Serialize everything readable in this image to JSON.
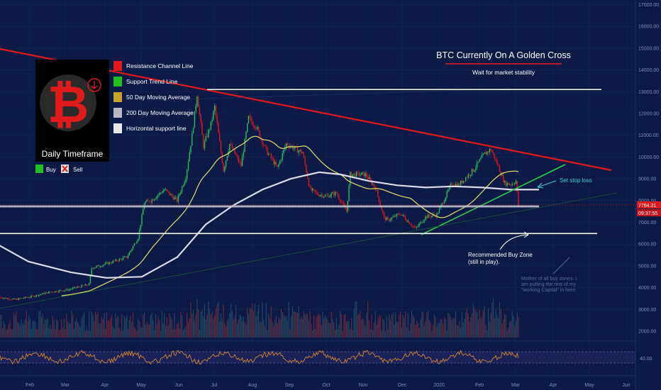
{
  "chart_data": {
    "type": "candlestick",
    "title": "BTC Currently On A Golden Cross",
    "subtitle": "Wait for market stability",
    "timeframe_label": "Daily Timeframe",
    "y_ticks": [
      "17000.00",
      "16000.00",
      "15000.00",
      "14000.00",
      "13000.00",
      "12000.00",
      "11000.00",
      "10000.00",
      "9000.00",
      "8000.00",
      "7000.00",
      "6000.00",
      "5000.00",
      "4000.00",
      "3000.00",
      "2000.00"
    ],
    "x_ticks": [
      "Feb",
      "Mar",
      "Apr",
      "May",
      "Jun",
      "Jul",
      "Aug",
      "Sep",
      "Oct",
      "Nov",
      "Dec",
      "2020",
      "Feb",
      "Mar",
      "Apr",
      "May",
      "Jun"
    ],
    "oscillator_tick": "40.00",
    "price_tag": "7764.31",
    "time_tag": "09:37:55",
    "ylim": [
      1500,
      17300
    ],
    "legend": [
      {
        "label": "Resistance Channel Line",
        "color": "#e01b1b"
      },
      {
        "label": "Support Trend Line",
        "color": "#1fbf1f"
      },
      {
        "label": "50 Day Moving Average",
        "color": "#c8a22a"
      },
      {
        "label": "200 Day Moving Average",
        "color": "#b9b9c4"
      },
      {
        "label": "Horizontal support line",
        "color": "#e8e8e8"
      }
    ],
    "buy_label": "Buy",
    "sell_label": "Sell",
    "annotations": {
      "stop_loss": "Set stop loss",
      "buy_zone_1": "Recommended Buy Zone",
      "buy_zone_2": "(still in play).",
      "note_1": "Mother of all buy zones. I",
      "note_2": "am putting the rest of my",
      "note_3": "\"working Capital\" in here."
    },
    "levels": [
      13100,
      7764,
      6550
    ],
    "price_series": [
      [
        "Jan 20",
        3550
      ],
      [
        "Feb 1",
        3450
      ],
      [
        "Feb 15",
        3600
      ],
      [
        "Mar 1",
        3800
      ],
      [
        "Mar 15",
        3900
      ],
      [
        "Apr 1",
        4150
      ],
      [
        "Apr 3",
        4900
      ],
      [
        "Apr 15",
        5100
      ],
      [
        "May 1",
        5400
      ],
      [
        "May 10",
        6300
      ],
      [
        "May 15",
        7900
      ],
      [
        "May 20",
        8000
      ],
      [
        "May 31",
        8500
      ],
      [
        "Jun 10",
        8000
      ],
      [
        "Jun 17",
        9100
      ],
      [
        "Jun 22",
        11000
      ],
      [
        "Jun 26",
        12900
      ],
      [
        "Jul 1",
        10500
      ],
      [
        "Jul 7",
        11500
      ],
      [
        "Jul 10",
        12300
      ],
      [
        "Jul 17",
        9400
      ],
      [
        "Jul 22",
        10600
      ],
      [
        "Jul 31",
        9600
      ],
      [
        "Aug 6",
        11800
      ],
      [
        "Aug 12",
        11400
      ],
      [
        "Aug 20",
        10300
      ],
      [
        "Aug 29",
        9500
      ],
      [
        "Sep 5",
        10600
      ],
      [
        "Sep 18",
        10200
      ],
      [
        "Sep 24",
        8500
      ],
      [
        "Sep 30",
        8300
      ],
      [
        "Oct 7",
        8200
      ],
      [
        "Oct 15",
        8350
      ],
      [
        "Oct 23",
        7500
      ],
      [
        "Oct 26",
        9200
      ],
      [
        "Nov 7",
        9200
      ],
      [
        "Nov 15",
        8600
      ],
      [
        "Nov 22",
        7200
      ],
      [
        "Nov 25",
        7100
      ],
      [
        "Dec 5",
        7400
      ],
      [
        "Dec 17",
        6700
      ],
      [
        "Dec 25",
        7250
      ],
      [
        "Jan 3",
        7350
      ],
      [
        "Jan 15",
        8800
      ],
      [
        "Jan 20",
        8700
      ],
      [
        "Feb 1",
        9400
      ],
      [
        "Feb 10",
        10150
      ],
      [
        "Feb 15",
        10350
      ],
      [
        "Feb 20",
        9700
      ],
      [
        "Feb 26",
        8800
      ],
      [
        "Mar 3",
        8750
      ],
      [
        "Mar 7",
        8900
      ],
      [
        "Mar 9",
        7764
      ]
    ]
  }
}
